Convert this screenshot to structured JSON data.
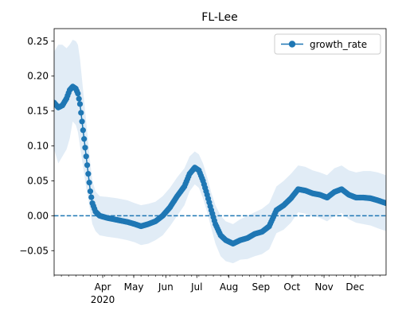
{
  "chart_data": {
    "type": "line",
    "title": "FL-Lee",
    "xlabel": "",
    "ylabel": "",
    "x_unit": "date",
    "xlim": [
      "2020-02-14",
      "2020-12-31"
    ],
    "ylim": [
      -0.085,
      0.268
    ],
    "y_ticks": [
      -0.05,
      0.0,
      0.05,
      0.1,
      0.15,
      0.2,
      0.25
    ],
    "y_tick_labels": [
      "−0.05",
      "0.00",
      "0.05",
      "0.10",
      "0.15",
      "0.20",
      "0.25"
    ],
    "x_ticks": [
      {
        "date": "2020-04-01",
        "label": "Apr",
        "sublabel": "2020"
      },
      {
        "date": "2020-05-01",
        "label": "May",
        "sublabel": ""
      },
      {
        "date": "2020-06-01",
        "label": "Jun",
        "sublabel": ""
      },
      {
        "date": "2020-07-01",
        "label": "Jul",
        "sublabel": ""
      },
      {
        "date": "2020-08-01",
        "label": "Aug",
        "sublabel": ""
      },
      {
        "date": "2020-09-01",
        "label": "Sep",
        "sublabel": ""
      },
      {
        "date": "2020-10-01",
        "label": "Oct",
        "sublabel": ""
      },
      {
        "date": "2020-11-01",
        "label": "Nov",
        "sublabel": ""
      },
      {
        "date": "2020-12-01",
        "label": "Dec",
        "sublabel": ""
      }
    ],
    "minor_tick_interval_days": 7,
    "grid": false,
    "legend_position": "top-right",
    "series": [
      {
        "name": "growth_rate",
        "color": "#1f77b4",
        "marker": "circle",
        "band_color": "#dce9f5",
        "points": [
          {
            "x": "2020-02-14",
            "y": 0.162,
            "lo": 0.095,
            "hi": 0.235
          },
          {
            "x": "2020-02-18",
            "y": 0.155,
            "lo": 0.075,
            "hi": 0.245
          },
          {
            "x": "2020-02-22",
            "y": 0.158,
            "lo": 0.085,
            "hi": 0.245
          },
          {
            "x": "2020-02-26",
            "y": 0.168,
            "lo": 0.095,
            "hi": 0.24
          },
          {
            "x": "2020-02-29",
            "y": 0.18,
            "lo": 0.11,
            "hi": 0.245
          },
          {
            "x": "2020-03-03",
            "y": 0.185,
            "lo": 0.135,
            "hi": 0.252
          },
          {
            "x": "2020-03-06",
            "y": 0.182,
            "lo": 0.13,
            "hi": 0.25
          },
          {
            "x": "2020-03-08",
            "y": 0.175,
            "lo": 0.12,
            "hi": 0.245
          },
          {
            "x": "2020-03-10",
            "y": 0.16,
            "lo": 0.1,
            "hi": 0.225
          },
          {
            "x": "2020-03-12",
            "y": 0.135,
            "lo": 0.08,
            "hi": 0.195
          },
          {
            "x": "2020-03-14",
            "y": 0.11,
            "lo": 0.06,
            "hi": 0.165
          },
          {
            "x": "2020-03-16",
            "y": 0.085,
            "lo": 0.04,
            "hi": 0.135
          },
          {
            "x": "2020-03-18",
            "y": 0.06,
            "lo": 0.025,
            "hi": 0.105
          },
          {
            "x": "2020-03-20",
            "y": 0.035,
            "lo": 0.005,
            "hi": 0.075
          },
          {
            "x": "2020-03-22",
            "y": 0.018,
            "lo": -0.012,
            "hi": 0.05
          },
          {
            "x": "2020-03-25",
            "y": 0.006,
            "lo": -0.022,
            "hi": 0.035
          },
          {
            "x": "2020-03-29",
            "y": 0.0,
            "lo": -0.028,
            "hi": 0.028
          },
          {
            "x": "2020-04-05",
            "y": -0.003,
            "lo": -0.03,
            "hi": 0.027
          },
          {
            "x": "2020-04-15",
            "y": -0.006,
            "lo": -0.032,
            "hi": 0.025
          },
          {
            "x": "2020-04-25",
            "y": -0.009,
            "lo": -0.035,
            "hi": 0.022
          },
          {
            "x": "2020-05-02",
            "y": -0.012,
            "lo": -0.038,
            "hi": 0.018
          },
          {
            "x": "2020-05-08",
            "y": -0.015,
            "lo": -0.042,
            "hi": 0.015
          },
          {
            "x": "2020-05-15",
            "y": -0.012,
            "lo": -0.04,
            "hi": 0.017
          },
          {
            "x": "2020-05-22",
            "y": -0.008,
            "lo": -0.035,
            "hi": 0.02
          },
          {
            "x": "2020-05-29",
            "y": 0.0,
            "lo": -0.028,
            "hi": 0.028
          },
          {
            "x": "2020-06-05",
            "y": 0.012,
            "lo": -0.015,
            "hi": 0.04
          },
          {
            "x": "2020-06-12",
            "y": 0.028,
            "lo": 0.0,
            "hi": 0.055
          },
          {
            "x": "2020-06-19",
            "y": 0.042,
            "lo": 0.015,
            "hi": 0.068
          },
          {
            "x": "2020-06-24",
            "y": 0.06,
            "lo": 0.035,
            "hi": 0.085
          },
          {
            "x": "2020-06-29",
            "y": 0.069,
            "lo": 0.045,
            "hi": 0.092
          },
          {
            "x": "2020-07-03",
            "y": 0.065,
            "lo": 0.04,
            "hi": 0.088
          },
          {
            "x": "2020-07-07",
            "y": 0.05,
            "lo": 0.025,
            "hi": 0.075
          },
          {
            "x": "2020-07-11",
            "y": 0.03,
            "lo": 0.005,
            "hi": 0.055
          },
          {
            "x": "2020-07-15",
            "y": 0.008,
            "lo": -0.018,
            "hi": 0.033
          },
          {
            "x": "2020-07-19",
            "y": -0.012,
            "lo": -0.04,
            "hi": 0.015
          },
          {
            "x": "2020-07-24",
            "y": -0.028,
            "lo": -0.058,
            "hi": 0.0
          },
          {
            "x": "2020-07-29",
            "y": -0.035,
            "lo": -0.065,
            "hi": -0.008
          },
          {
            "x": "2020-08-05",
            "y": -0.04,
            "lo": -0.068,
            "hi": -0.012
          },
          {
            "x": "2020-08-12",
            "y": -0.035,
            "lo": -0.063,
            "hi": -0.005
          },
          {
            "x": "2020-08-19",
            "y": -0.032,
            "lo": -0.062,
            "hi": 0.0
          },
          {
            "x": "2020-08-26",
            "y": -0.026,
            "lo": -0.058,
            "hi": 0.005
          },
          {
            "x": "2020-09-02",
            "y": -0.023,
            "lo": -0.055,
            "hi": 0.01
          },
          {
            "x": "2020-09-09",
            "y": -0.015,
            "lo": -0.048,
            "hi": 0.018
          },
          {
            "x": "2020-09-16",
            "y": 0.008,
            "lo": -0.025,
            "hi": 0.042
          },
          {
            "x": "2020-09-23",
            "y": 0.015,
            "lo": -0.02,
            "hi": 0.05
          },
          {
            "x": "2020-09-30",
            "y": 0.025,
            "lo": -0.01,
            "hi": 0.06
          },
          {
            "x": "2020-10-07",
            "y": 0.038,
            "lo": 0.005,
            "hi": 0.072
          },
          {
            "x": "2020-10-14",
            "y": 0.036,
            "lo": 0.003,
            "hi": 0.07
          },
          {
            "x": "2020-10-21",
            "y": 0.032,
            "lo": 0.0,
            "hi": 0.065
          },
          {
            "x": "2020-10-28",
            "y": 0.03,
            "lo": -0.003,
            "hi": 0.062
          },
          {
            "x": "2020-11-04",
            "y": 0.026,
            "lo": -0.008,
            "hi": 0.058
          },
          {
            "x": "2020-11-11",
            "y": 0.034,
            "lo": 0.0,
            "hi": 0.068
          },
          {
            "x": "2020-11-18",
            "y": 0.038,
            "lo": 0.004,
            "hi": 0.072
          },
          {
            "x": "2020-11-25",
            "y": 0.03,
            "lo": -0.005,
            "hi": 0.065
          },
          {
            "x": "2020-12-02",
            "y": 0.026,
            "lo": -0.01,
            "hi": 0.062
          },
          {
            "x": "2020-12-09",
            "y": 0.026,
            "lo": -0.012,
            "hi": 0.064
          },
          {
            "x": "2020-12-16",
            "y": 0.025,
            "lo": -0.014,
            "hi": 0.064
          },
          {
            "x": "2020-12-23",
            "y": 0.022,
            "lo": -0.018,
            "hi": 0.062
          },
          {
            "x": "2020-12-31",
            "y": 0.018,
            "lo": -0.022,
            "hi": 0.058
          }
        ]
      }
    ],
    "reference_lines": [
      {
        "axis": "y",
        "value": 0.0,
        "style": "dashed",
        "color": "#1f77b4"
      }
    ]
  }
}
